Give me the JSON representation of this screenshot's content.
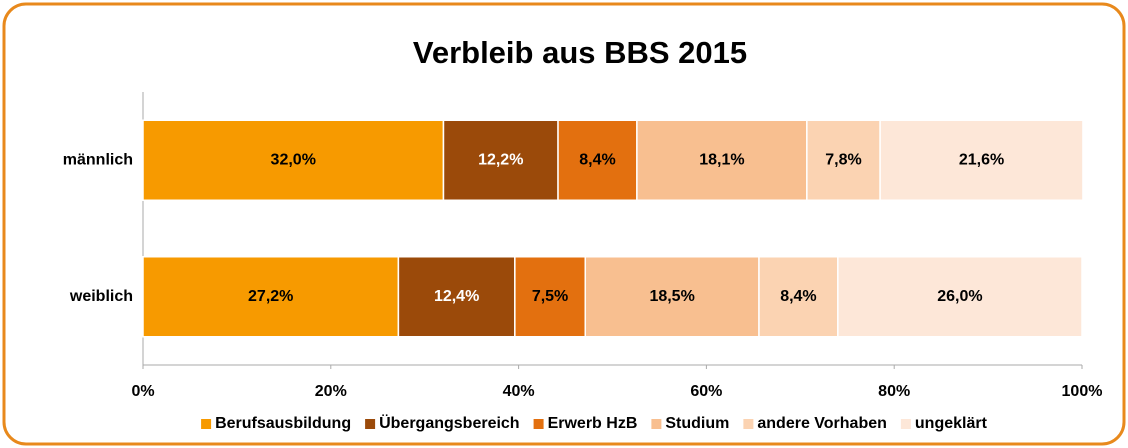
{
  "chart_data": {
    "type": "stacked-bar-horizontal",
    "title": "Verbleib aus BBS 2015",
    "categories": [
      "männlich",
      "weiblich"
    ],
    "series": [
      {
        "name": "Berufsausbildung",
        "color": "#f79a00",
        "values": [
          32.0,
          27.2
        ],
        "value_labels": [
          "32,0%",
          "27,2%"
        ]
      },
      {
        "name": "Übergangsbereich",
        "color": "#9b4a0a",
        "values": [
          12.2,
          12.4
        ],
        "value_labels": [
          "12,2%",
          "12,4%"
        ]
      },
      {
        "name": "Erwerb HzB",
        "color": "#e3700f",
        "values": [
          8.4,
          7.5
        ],
        "value_labels": [
          "8,4%",
          "7,5%"
        ]
      },
      {
        "name": "Studium",
        "color": "#f8bf90",
        "values": [
          18.1,
          18.5
        ],
        "value_labels": [
          "18,1%",
          "18,5%"
        ]
      },
      {
        "name": "andere Vorhaben",
        "color": "#fbd3b2",
        "values": [
          7.8,
          8.4
        ],
        "value_labels": [
          "7,8%",
          "8,4%"
        ]
      },
      {
        "name": "ungeklärt",
        "color": "#fde7d8",
        "values": [
          21.6,
          26.0
        ],
        "value_labels": [
          "21,6%",
          "26,0%"
        ]
      }
    ],
    "xlim": [
      0,
      100
    ],
    "xticks": [
      {
        "value": 0,
        "label": "0%"
      },
      {
        "value": 20,
        "label": "20%"
      },
      {
        "value": 40,
        "label": "40%"
      },
      {
        "value": 60,
        "label": "60%"
      },
      {
        "value": 80,
        "label": "80%"
      },
      {
        "value": 100,
        "label": "100%"
      }
    ],
    "legend": "bottom"
  }
}
